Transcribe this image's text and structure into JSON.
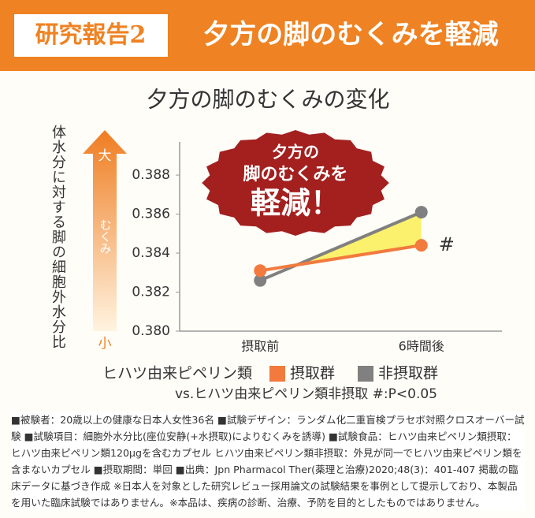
{
  "header": {
    "label": "研究報告2",
    "title": "夕方の脚のむくみを軽減"
  },
  "chart_data": {
    "type": "line",
    "title": "夕方の脚のむくみの変化",
    "y_label": "体水分に対する脚の細胞外水分比",
    "arrow_labels": {
      "top": "大",
      "middle": "むくみ",
      "bottom": "小"
    },
    "badge": [
      "夕方の",
      "脚のむくみを",
      "軽減！"
    ],
    "categories": [
      "摂取前",
      "6時間後"
    ],
    "series": [
      {
        "name": "摂取群",
        "color": "#f27a3e",
        "values": [
          0.3831,
          0.3844
        ]
      },
      {
        "name": "非摂取群",
        "color": "#808080",
        "values": [
          0.3826,
          0.3861
        ]
      }
    ],
    "annotation": "#",
    "legend_prefix": "ヒハツ由来ピペリン類",
    "footnote": "vs.ヒハツ由来ピペリン類非摂取 #:P<0.05",
    "ylim": [
      0.38,
      0.3897
    ],
    "yticks": [
      {
        "value": 0.38,
        "label": "0.380"
      },
      0.382,
      0.384,
      0.386,
      0.388
    ]
  },
  "notes": "■被験者：20歳以上の健康な日本人女性36名 ■試験デザイン：ランダム化二重盲検プラセボ対照クロスオーバー試験 ■試験項目：細胞外水分比(座位安静(+水摂取)によりむくみを誘導) ■試験食品：ヒハツ由来ピペリン類摂取：ヒハツ由来ピペリン類120μgを含むカプセル ヒハツ由来ピペリン類非摂取：外見が同一でヒハツ由来ピペリン類を含まないカプセル ■摂取期間：単回 ■出典：Jpn Pharmacol Ther(薬理と治療)2020;48(3)：401-407 掲載の臨床データに基づき作成 ※日本人を対象とした研究レビュー採用論文の試験結果を事例として提示しており、本製品を用いた臨床試験ではありません。※本品は、疾病の診断、治療、予防を目的としたものではありません。"
}
